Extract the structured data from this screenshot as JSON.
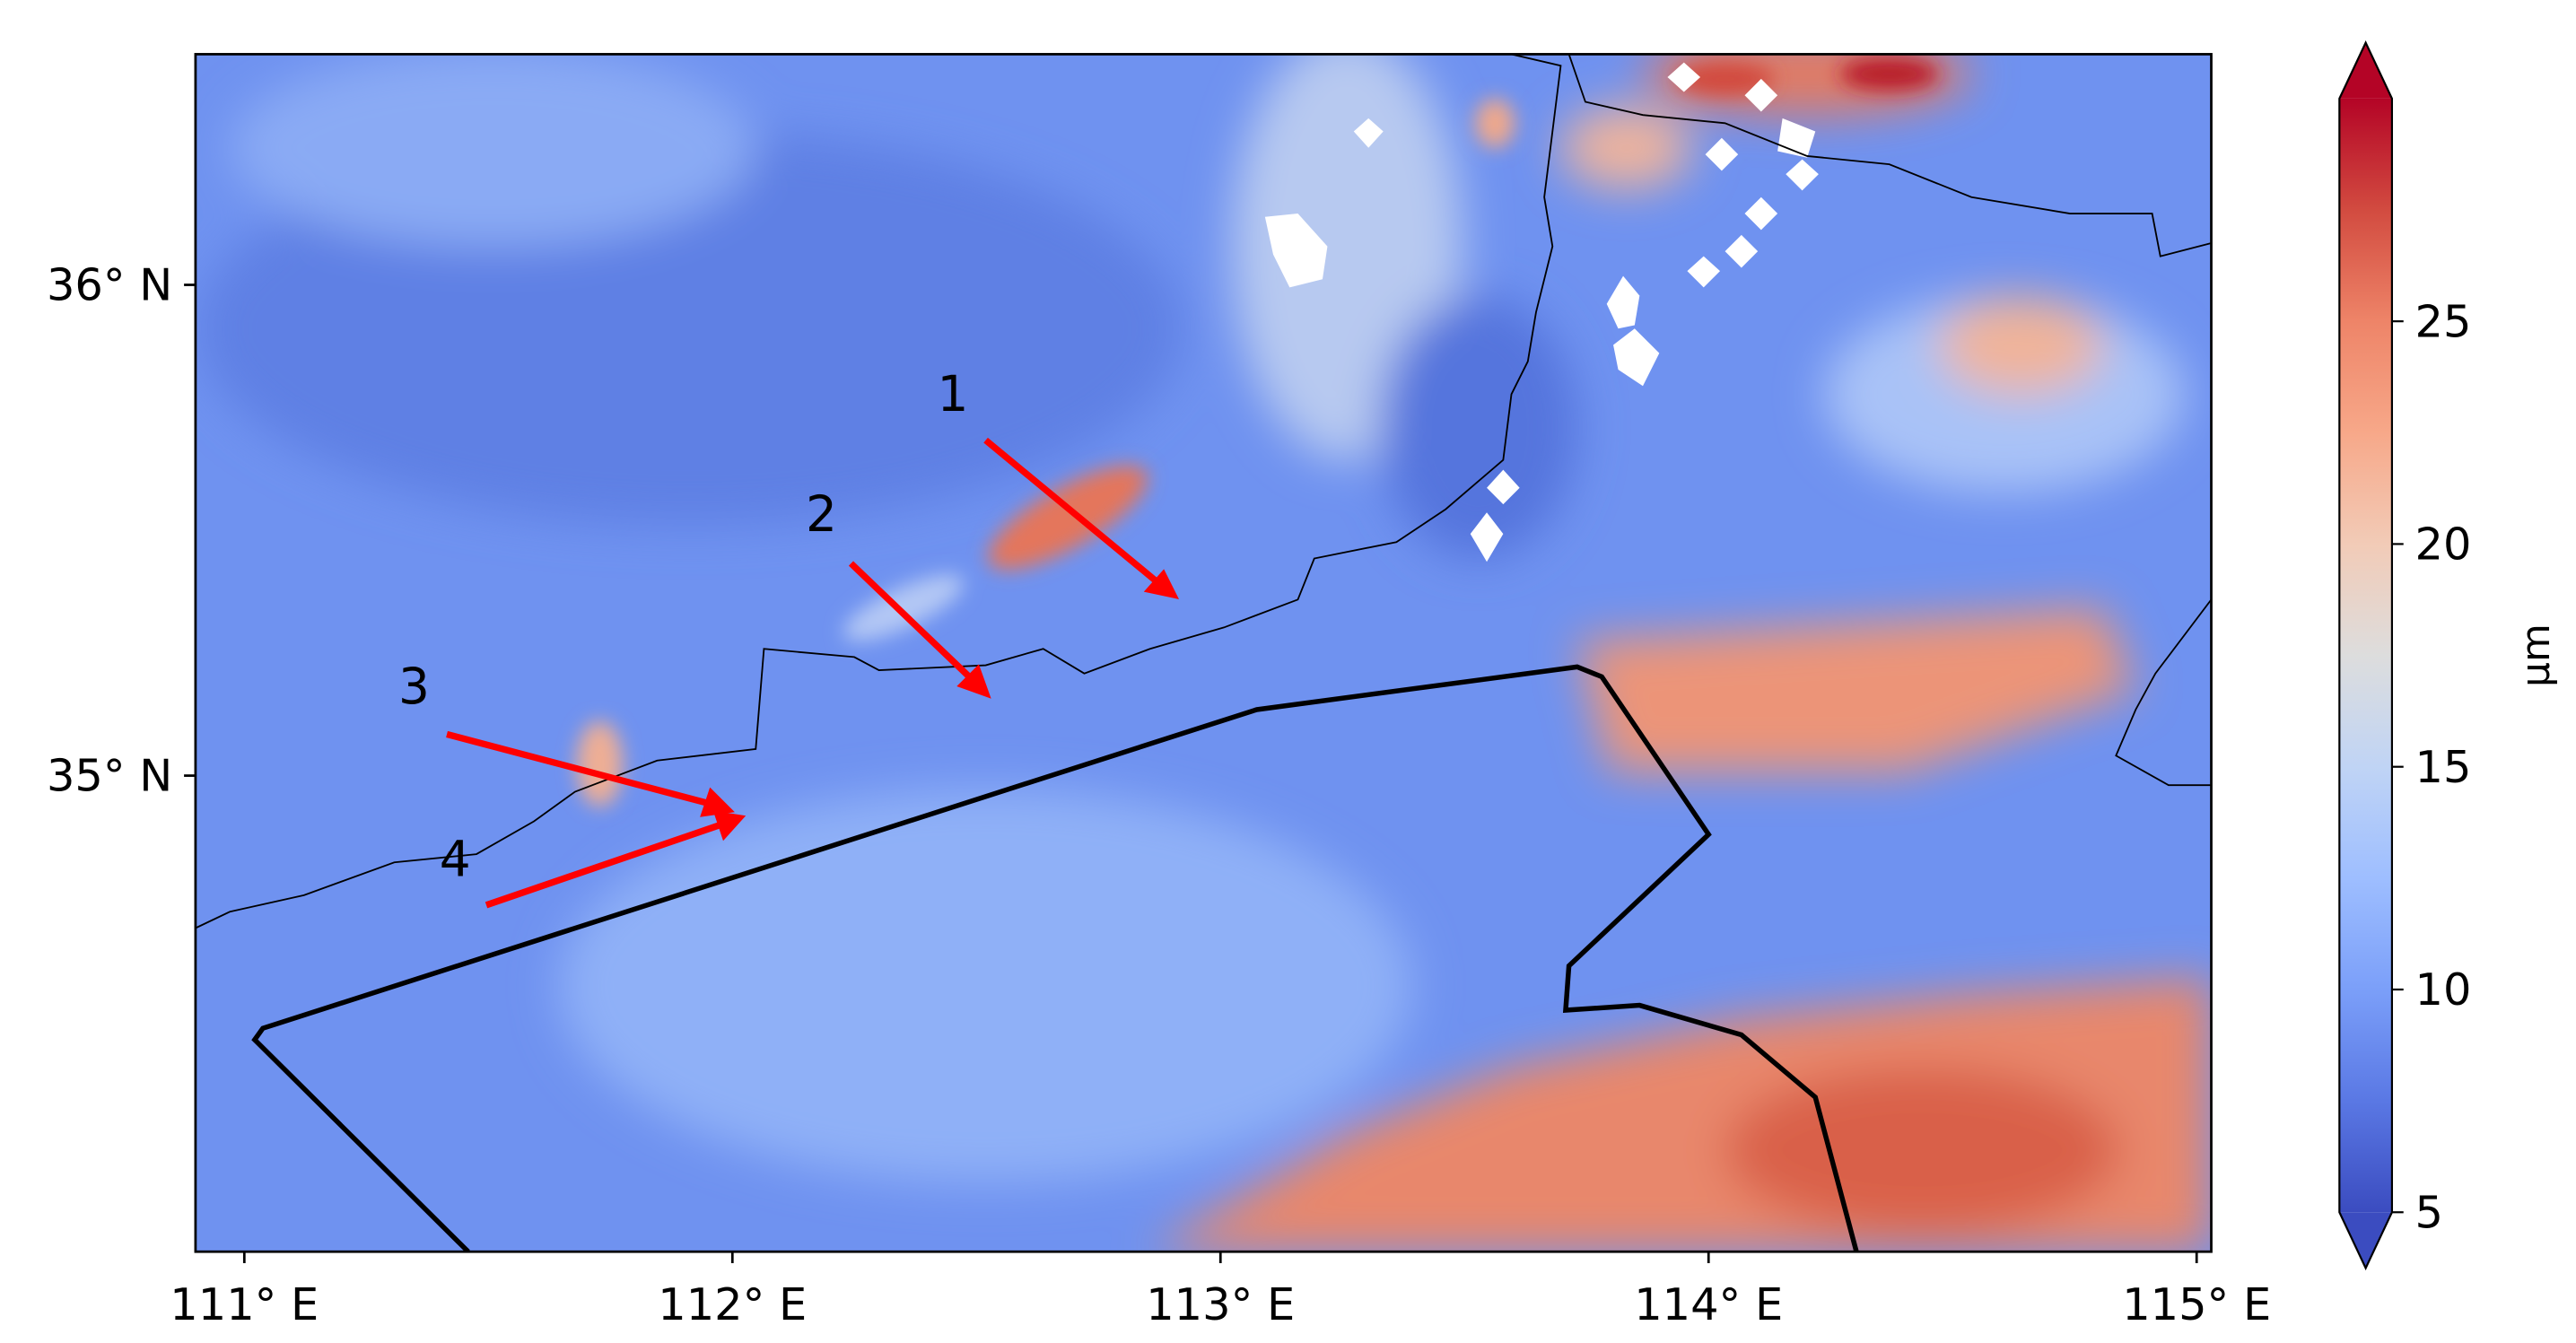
{
  "chart_data": {
    "type": "map",
    "xlim": [
      110.9,
      115.03
    ],
    "ylim": [
      34.03,
      36.47
    ],
    "xticks": [
      {
        "value": 111,
        "label": "111° E"
      },
      {
        "value": 112,
        "label": "112° E"
      },
      {
        "value": 113,
        "label": "113° E"
      },
      {
        "value": 114,
        "label": "114° E"
      },
      {
        "value": 115,
        "label": "115° E"
      }
    ],
    "yticks": [
      {
        "value": 35,
        "label": "35° N"
      },
      {
        "value": 36,
        "label": "36° N"
      }
    ],
    "annotations": [
      "1",
      "2",
      "3",
      "4"
    ],
    "colorbar": {
      "label": "μm",
      "colormap": "coolwarm",
      "extend": "both",
      "lim": [
        5,
        30
      ],
      "ticks": [
        5,
        10,
        15,
        20,
        25
      ]
    }
  }
}
